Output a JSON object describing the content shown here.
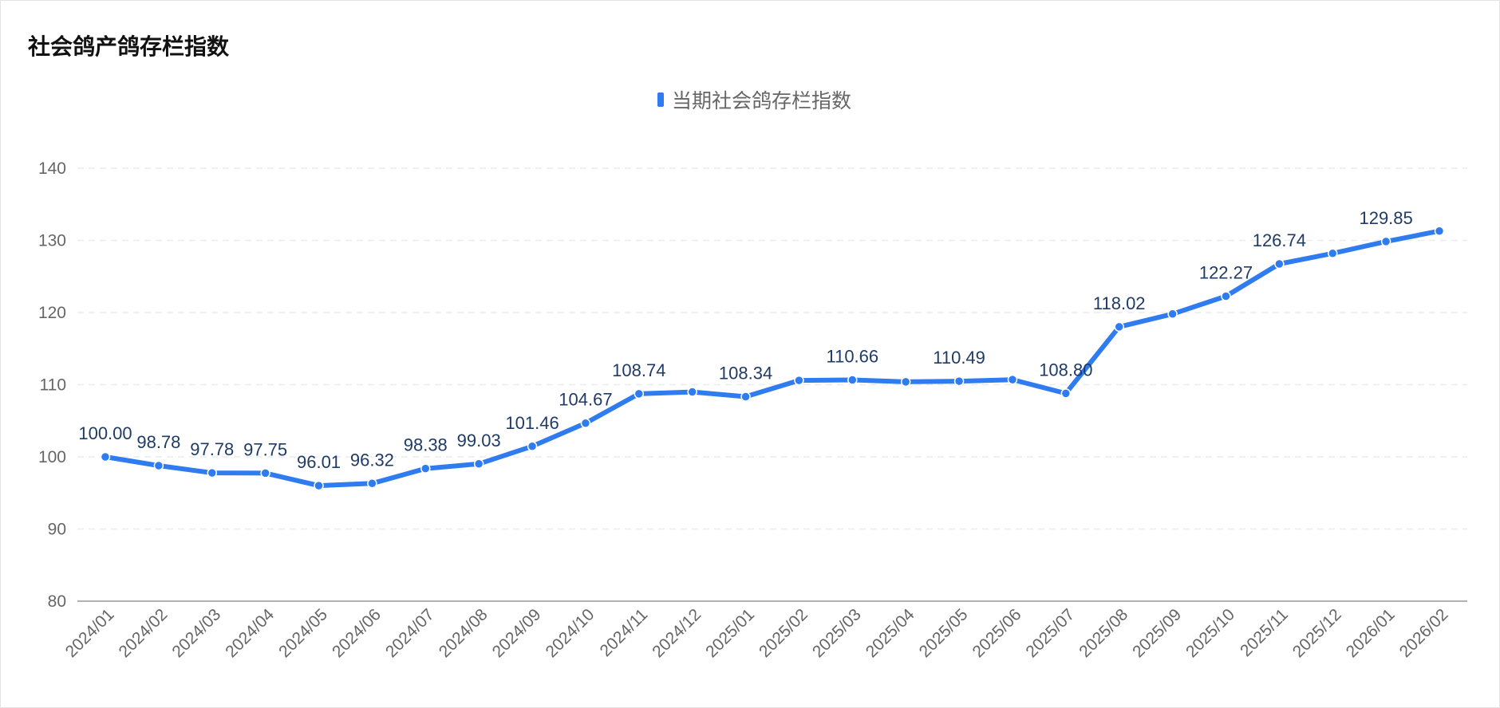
{
  "chart_data": {
    "type": "line",
    "title": "社会鸽产鸽存栏指数",
    "legend": {
      "position": "top-center"
    },
    "colors": {
      "series": "#2f7bf0",
      "label": "#1f3b66",
      "axis_text": "#666666",
      "grid": "#ececec"
    },
    "grid": true,
    "ylim": [
      80,
      140
    ],
    "yticks": [
      80,
      90,
      100,
      110,
      120,
      130,
      140
    ],
    "x": [
      "2024/01",
      "2024/02",
      "2024/03",
      "2024/04",
      "2024/05",
      "2024/06",
      "2024/07",
      "2024/08",
      "2024/09",
      "2024/10",
      "2024/11",
      "2024/12",
      "2025/01",
      "2025/02",
      "2025/03",
      "2025/04",
      "2025/05",
      "2025/06",
      "2025/07",
      "2025/08",
      "2025/09",
      "2025/10",
      "2025/11",
      "2025/12",
      "2026/01",
      "2026/02"
    ],
    "series": [
      {
        "name": "当期社会鸽存栏指数",
        "values": [
          100.0,
          98.78,
          97.78,
          97.75,
          96.01,
          96.32,
          98.38,
          99.03,
          101.46,
          104.67,
          108.74,
          109.0,
          108.34,
          110.6,
          110.66,
          110.4,
          110.49,
          110.7,
          108.8,
          118.02,
          119.8,
          122.27,
          126.74,
          128.2,
          129.85,
          131.3
        ],
        "data_labels": [
          "100.00",
          "98.78",
          "97.78",
          "97.75",
          "96.01",
          "96.32",
          "98.38",
          "99.03",
          "101.46",
          "104.67",
          "108.74",
          null,
          "108.34",
          null,
          "110.66",
          null,
          "110.49",
          null,
          "108.80",
          "118.02",
          null,
          "122.27",
          "126.74",
          null,
          "129.85",
          null
        ]
      }
    ]
  }
}
